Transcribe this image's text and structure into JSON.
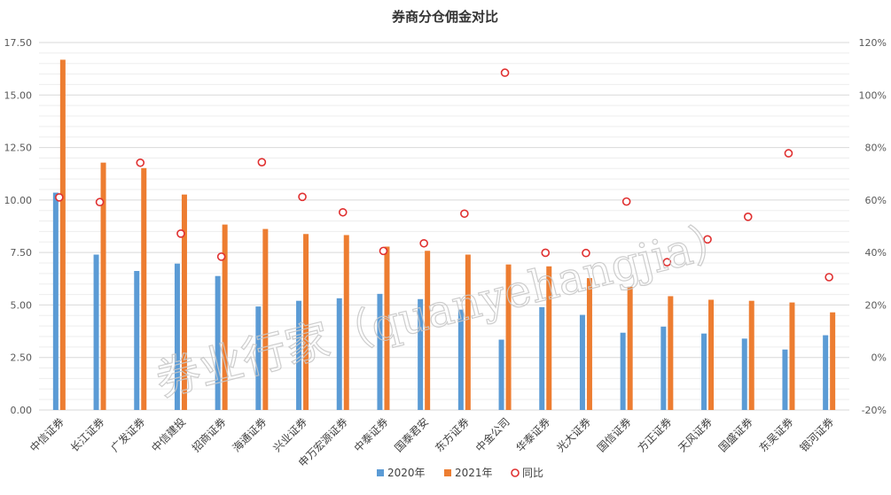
{
  "chart_data": {
    "type": "bar",
    "title": "券商分仓佣金对比",
    "categories": [
      "中信证券",
      "长江证券",
      "广发证券",
      "中信建投",
      "招商证券",
      "海通证券",
      "兴业证券",
      "申万宏源证券",
      "中泰证券",
      "国泰君安",
      "东方证券",
      "中金公司",
      "华泰证券",
      "光大证券",
      "国信证券",
      "方正证券",
      "天风证券",
      "国盛证券",
      "东吴证券",
      "银河证券"
    ],
    "series": [
      {
        "name": "2020年",
        "axis": "left",
        "color": "#5B9BD5",
        "values": [
          10.35,
          7.4,
          6.62,
          6.97,
          6.38,
          4.93,
          5.2,
          5.32,
          5.53,
          5.28,
          4.78,
          3.35,
          4.9,
          4.53,
          3.68,
          3.97,
          3.64,
          3.4,
          2.88,
          3.56
        ]
      },
      {
        "name": "2021年",
        "axis": "left",
        "color": "#ED7D31",
        "values": [
          16.68,
          11.78,
          11.52,
          10.26,
          8.83,
          8.62,
          8.38,
          8.33,
          7.78,
          7.58,
          7.4,
          6.93,
          6.84,
          6.28,
          5.87,
          5.42,
          5.25,
          5.2,
          5.12,
          4.65
        ]
      },
      {
        "name": "同比",
        "axis": "right",
        "color": "#E03030",
        "marker": "circle",
        "values": [
          61,
          59.2,
          74.2,
          47.2,
          38.4,
          74.4,
          61.2,
          55.3,
          40.6,
          43.5,
          54.8,
          108.5,
          39.9,
          39.8,
          59.4,
          36.3,
          45,
          53.6,
          77.8,
          30.6
        ]
      }
    ],
    "left_axis": {
      "ticks": [
        "0.00",
        "2.50",
        "5.00",
        "7.50",
        "10.00",
        "12.50",
        "15.00",
        "17.50"
      ],
      "ylim": [
        0,
        17.5
      ]
    },
    "right_axis": {
      "ticks": [
        "-20%",
        "0%",
        "20%",
        "40%",
        "60%",
        "80%",
        "100%",
        "120%"
      ],
      "ylim": [
        -20,
        120
      ]
    },
    "legend_position": "bottom",
    "grid": true
  },
  "watermark": "券业行家（quanyehangjia）"
}
